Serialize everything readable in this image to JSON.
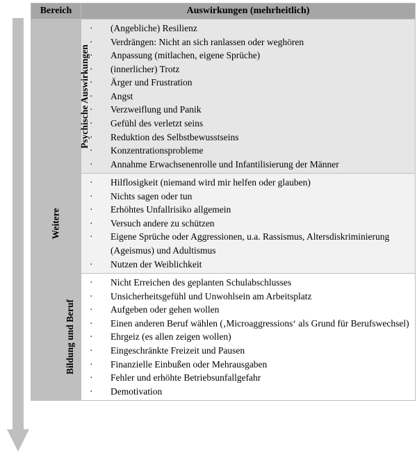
{
  "header": {
    "col_area": "Bereich",
    "col_effects": "Auswirkungen (mehrheitlich)"
  },
  "arrow": {
    "color": "#bfbfbf"
  },
  "sections": [
    {
      "label": "Psychische Auswirkungen",
      "shade": "shade1",
      "items": [
        "(Angebliche) Resilienz",
        "Verdrängen: Nicht an sich ranlassen oder weghören",
        "Anpassung (mitlachen, eigene Sprüche)",
        "(innerlicher) Trotz",
        "Ärger und Frustration",
        "Angst",
        "Verzweiflung und Panik",
        "Gefühl des verletzt seins",
        "Reduktion des Selbstbewusstseins",
        "Konzentrationsprobleme",
        "Annahme Erwachsenenrolle und Infantilisierung der Männer"
      ]
    },
    {
      "label": "Weitere",
      "shade": "shade2",
      "items": [
        "Hilflosigkeit (niemand wird mir helfen oder glauben)",
        "Nichts sagen oder tun",
        "Erhöhtes Unfallrisiko allgemein",
        "Versuch andere zu schützen",
        "Eigene Sprüche oder Aggressionen, u.a. Rassismus, Altersdiskriminierung (Ageismus) und Adultismus",
        "Nutzen der Weiblichkeit"
      ]
    },
    {
      "label": "Bildung und Beruf",
      "shade": "shade3",
      "items": [
        "Nicht Erreichen des geplanten Schulabschlusses",
        "Unsicherheitsgefühl und Unwohlsein am Arbeitsplatz",
        "Aufgeben oder gehen wollen",
        "Einen anderen Beruf wählen (‚Microaggressions‘ als Grund für Berufswechsel)",
        "Ehrgeiz (es allen zeigen wollen)",
        "Eingeschränkte Freizeit und Pausen",
        "Finanzielle Einbußen oder Mehrausgaben",
        "Fehler und erhöhte Betriebsunfallgefahr",
        "Demotivation"
      ]
    }
  ]
}
